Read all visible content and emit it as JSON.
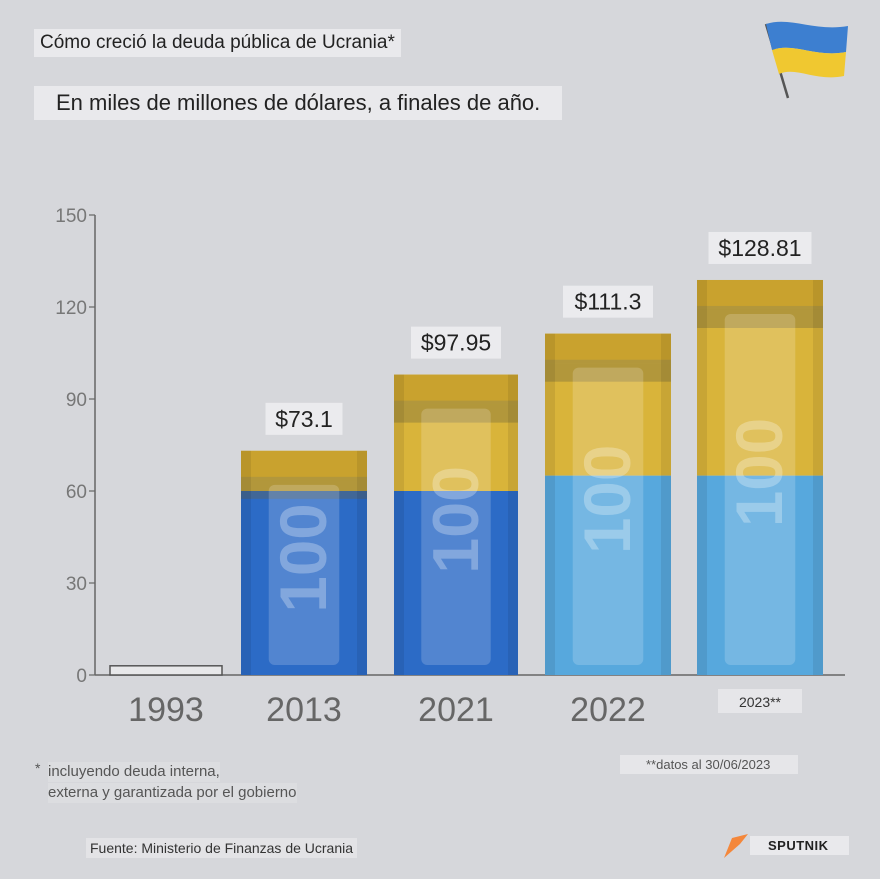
{
  "title": "Cómo creció la deuda pública de Ucrania*",
  "subtitle": "En miles de millones de dólares, a finales de año.",
  "footnote_star": "*",
  "footnote_lines": [
    "incluyendo deuda interna,",
    "externa y garantizada por el gobierno"
  ],
  "footnote_date": "**datos al 30/06/2023",
  "source": "Fuente: Ministerio de Finanzas de Ucrania",
  "brand": "SPUTNIK",
  "colors": {
    "background": "#d6d7db",
    "ukraine_blue": "#3d7fd0",
    "ukraine_yellow": "#d9b43a",
    "bar_blue": "#2c6bc6",
    "bar_light_blue": "#57a8dd",
    "sputnik_orange": "#f4873b"
  },
  "chart_data": {
    "type": "bar",
    "categories": [
      "1993",
      "2013",
      "2021",
      "2022",
      "2023**"
    ],
    "values": [
      3,
      73.1,
      97.95,
      111.3,
      128.81
    ],
    "value_labels": [
      "",
      "$73.1",
      "$97.95",
      "$111.3",
      "$128.81"
    ],
    "ylim": [
      0,
      150
    ],
    "yticks": [
      0,
      30,
      60,
      90,
      120,
      150
    ],
    "grid": false
  }
}
